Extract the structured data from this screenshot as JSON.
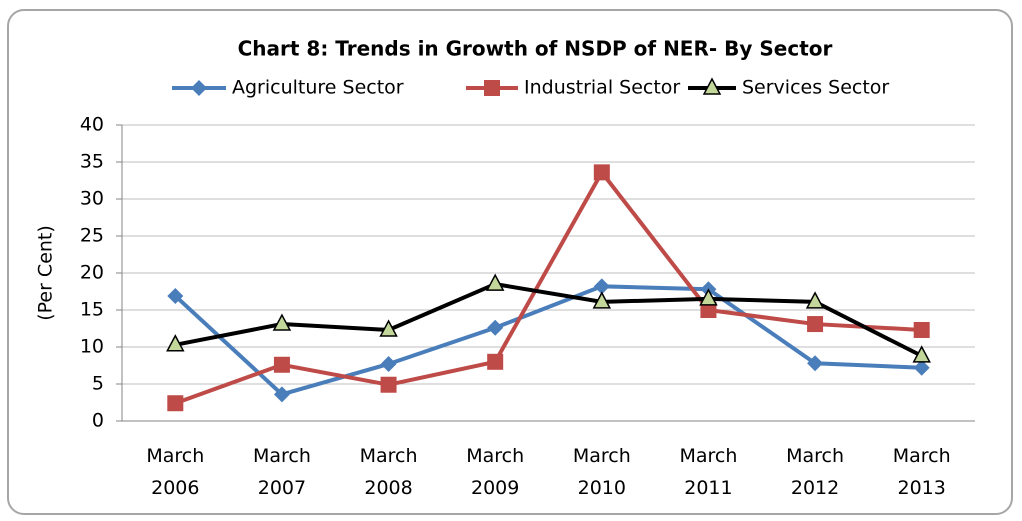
{
  "chart_data": {
    "type": "line",
    "title": "Chart 8: Trends in Growth of NSDP of NER- By Sector",
    "y_label": "(Per Cent)",
    "categories": [
      "March 2006",
      "March 2007",
      "March 2008",
      "March 2009",
      "March 2010",
      "March 2011",
      "March 2012",
      "March 2013"
    ],
    "series": [
      {
        "name": "Agriculture Sector",
        "color": "#4a7ebb",
        "marker": "diamond",
        "values": [
          16.9,
          3.6,
          7.7,
          12.6,
          18.2,
          17.8,
          7.8,
          7.2
        ]
      },
      {
        "name": "Industrial Sector",
        "color": "#be4b48",
        "marker": "square",
        "values": [
          2.4,
          7.6,
          4.9,
          8.0,
          33.6,
          15.0,
          13.1,
          12.3
        ]
      },
      {
        "name": "Services Sector",
        "color": "#000000",
        "marker": "triangle",
        "values": [
          10.3,
          13.1,
          12.3,
          18.5,
          16.1,
          16.5,
          16.1,
          8.8
        ]
      }
    ],
    "ylim": [
      0,
      40
    ],
    "yticks": [
      0,
      5,
      10,
      15,
      20,
      25,
      30,
      35,
      40
    ],
    "grid": true
  }
}
